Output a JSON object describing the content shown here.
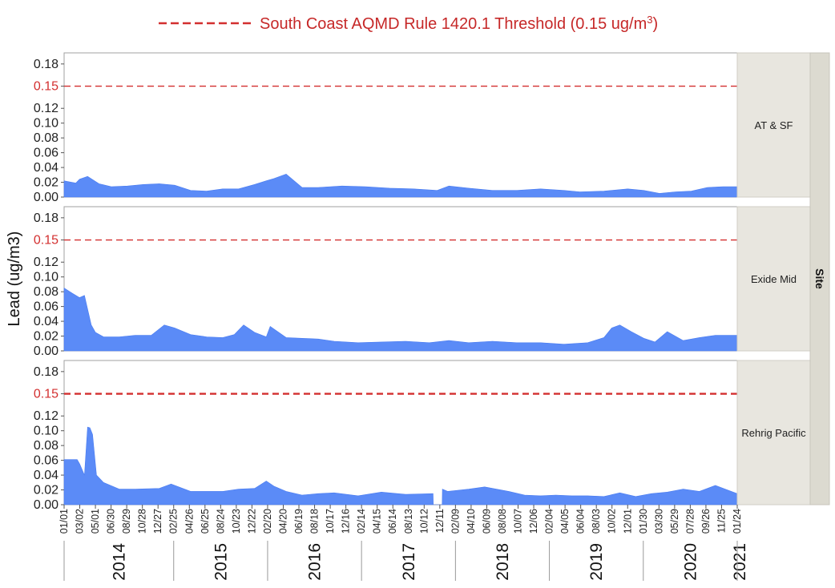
{
  "chart_data": {
    "type": "area",
    "ylabel": "Lead (ug/m3)",
    "y_ticks": [
      "0.00",
      "0.02",
      "0.04",
      "0.06",
      "0.08",
      "0.10",
      "0.12",
      "0.15",
      "0.18"
    ],
    "ylim": [
      0,
      0.195
    ],
    "threshold": {
      "label_main": "South Coast AQMD Rule 1420.1 Threshold (0.15 ug/m",
      "label_sup": "3",
      "label_end": ")",
      "value": 0.15,
      "color": "#d32f2f"
    },
    "facet_strip_title": "Site",
    "colors": {
      "area": "#5b8bf7",
      "panel_border": "#a0a0a0",
      "facet_bg": "#e8e6df",
      "strip_bg": "#dcdad0"
    },
    "x_range": [
      "2014-01-01",
      "2021-01-24"
    ],
    "x_ticks": [
      "01/01",
      "03/02",
      "05/01",
      "06/30",
      "08/29",
      "10/28",
      "12/27",
      "02/25",
      "04/26",
      "06/25",
      "08/24",
      "10/23",
      "12/22",
      "02/20",
      "04/20",
      "06/19",
      "08/18",
      "10/17",
      "12/16",
      "02/14",
      "04/15",
      "06/14",
      "08/13",
      "10/12",
      "12/11",
      "02/09",
      "04/10",
      "06/09",
      "08/08",
      "10/07",
      "12/06",
      "02/04",
      "04/05",
      "06/04",
      "08/03",
      "10/02",
      "12/01",
      "01/30",
      "03/30",
      "05/29",
      "07/28",
      "09/26",
      "11/25",
      "01/24"
    ],
    "years": [
      "2014",
      "2015",
      "2016",
      "2017",
      "2018",
      "2019",
      "2020",
      "2021"
    ],
    "series": [
      {
        "name": "AT & SF",
        "x": [
          "2014-01-01",
          "2014-02-15",
          "2014-03-01",
          "2014-04-01",
          "2014-05-15",
          "2014-07-01",
          "2014-09-01",
          "2014-11-01",
          "2015-01-01",
          "2015-03-01",
          "2015-05-01",
          "2015-07-01",
          "2015-09-01",
          "2015-11-01",
          "2016-01-01",
          "2016-02-15",
          "2016-03-15",
          "2016-05-01",
          "2016-07-01",
          "2016-09-01",
          "2016-12-01",
          "2017-03-01",
          "2017-06-01",
          "2017-09-01",
          "2017-12-01",
          "2018-01-15",
          "2018-04-01",
          "2018-07-01",
          "2018-10-01",
          "2019-01-01",
          "2019-04-01",
          "2019-06-01",
          "2019-09-01",
          "2019-12-01",
          "2020-02-01",
          "2020-04-01",
          "2020-06-01",
          "2020-08-01",
          "2020-10-01",
          "2020-12-01",
          "2021-01-24"
        ],
        "values": [
          0.022,
          0.019,
          0.024,
          0.028,
          0.018,
          0.014,
          0.015,
          0.017,
          0.018,
          0.016,
          0.009,
          0.008,
          0.011,
          0.011,
          0.017,
          0.022,
          0.025,
          0.031,
          0.013,
          0.013,
          0.015,
          0.014,
          0.012,
          0.011,
          0.009,
          0.015,
          0.012,
          0.009,
          0.009,
          0.011,
          0.009,
          0.007,
          0.008,
          0.011,
          0.009,
          0.005,
          0.007,
          0.008,
          0.013,
          0.014,
          0.014
        ]
      },
      {
        "name": "Exide Mid",
        "x": [
          "2014-01-01",
          "2014-02-01",
          "2014-03-01",
          "2014-03-20",
          "2014-04-15",
          "2014-05-01",
          "2014-06-01",
          "2014-08-01",
          "2014-10-01",
          "2014-12-01",
          "2015-01-20",
          "2015-03-01",
          "2015-05-01",
          "2015-07-01",
          "2015-09-01",
          "2015-10-15",
          "2015-11-20",
          "2016-01-01",
          "2016-02-15",
          "2016-03-01",
          "2016-05-01",
          "2016-07-01",
          "2016-09-01",
          "2016-11-01",
          "2017-02-01",
          "2017-05-01",
          "2017-08-01",
          "2017-11-01",
          "2018-01-15",
          "2018-04-01",
          "2018-07-01",
          "2018-10-01",
          "2019-01-01",
          "2019-04-01",
          "2019-07-01",
          "2019-09-01",
          "2019-10-01",
          "2019-11-01",
          "2019-12-15",
          "2020-02-01",
          "2020-03-15",
          "2020-05-01",
          "2020-07-01",
          "2020-09-01",
          "2020-11-01",
          "2021-01-24"
        ],
        "values": [
          0.085,
          0.078,
          0.072,
          0.075,
          0.035,
          0.025,
          0.019,
          0.019,
          0.021,
          0.021,
          0.035,
          0.031,
          0.022,
          0.019,
          0.018,
          0.022,
          0.035,
          0.025,
          0.019,
          0.033,
          0.018,
          0.017,
          0.016,
          0.013,
          0.011,
          0.012,
          0.013,
          0.011,
          0.014,
          0.011,
          0.013,
          0.011,
          0.011,
          0.009,
          0.011,
          0.018,
          0.031,
          0.035,
          0.026,
          0.017,
          0.012,
          0.026,
          0.014,
          0.018,
          0.021,
          0.021
        ]
      },
      {
        "name": "Rehrig Pacific",
        "x": [
          "2014-01-01",
          "2014-02-20",
          "2014-03-02",
          "2014-03-20",
          "2014-04-01",
          "2014-04-10",
          "2014-04-20",
          "2014-05-05",
          "2014-06-01",
          "2014-08-01",
          "2014-10-01",
          "2015-01-01",
          "2015-02-15",
          "2015-05-01",
          "2015-07-01",
          "2015-09-01",
          "2015-11-01",
          "2016-01-01",
          "2016-02-15",
          "2016-03-15",
          "2016-05-01",
          "2016-07-01",
          "2016-09-01",
          "2016-11-01",
          "2017-02-01",
          "2017-05-01",
          "2017-08-01",
          "2017-11-15",
          "2017-11-16",
          "2017-12-20",
          "2017-12-21",
          "2018-01-10",
          "2018-04-01",
          "2018-06-01",
          "2018-09-01",
          "2018-11-01",
          "2019-01-01",
          "2019-03-01",
          "2019-05-01",
          "2019-07-01",
          "2019-09-01",
          "2019-11-01",
          "2020-01-01",
          "2020-03-01",
          "2020-05-01",
          "2020-07-01",
          "2020-09-01",
          "2020-11-01",
          "2021-01-24"
        ],
        "values": [
          0.061,
          0.061,
          0.055,
          0.04,
          0.105,
          0.104,
          0.095,
          0.04,
          0.03,
          0.021,
          0.021,
          0.022,
          0.028,
          0.018,
          0.018,
          0.018,
          0.021,
          0.022,
          0.032,
          0.025,
          0.018,
          0.013,
          0.015,
          0.016,
          0.012,
          0.017,
          0.014,
          0.015,
          0,
          0,
          0.021,
          0.018,
          0.021,
          0.024,
          0.018,
          0.013,
          0.012,
          0.013,
          0.012,
          0.012,
          0.011,
          0.016,
          0.011,
          0.015,
          0.017,
          0.021,
          0.018,
          0.026,
          0.015
        ]
      }
    ]
  }
}
